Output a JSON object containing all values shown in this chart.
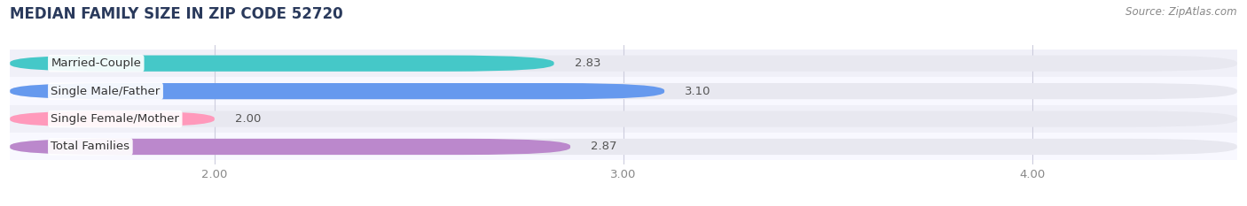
{
  "title": "MEDIAN FAMILY SIZE IN ZIP CODE 52720",
  "source": "Source: ZipAtlas.com",
  "categories": [
    "Married-Couple",
    "Single Male/Father",
    "Single Female/Mother",
    "Total Families"
  ],
  "values": [
    2.83,
    3.1,
    2.0,
    2.87
  ],
  "bar_colors": [
    "#45c8c8",
    "#6699ee",
    "#ff99bb",
    "#bb88cc"
  ],
  "bar_bg_color": "#e8e8f0",
  "row_bg_colors": [
    "#f0f0f8",
    "#f8f8ff"
  ],
  "xlim": [
    1.5,
    4.5
  ],
  "xticks": [
    2.0,
    3.0,
    4.0
  ],
  "xtick_labels": [
    "2.00",
    "3.00",
    "4.00"
  ],
  "label_fontsize": 9.5,
  "value_fontsize": 9.5,
  "title_fontsize": 12,
  "source_fontsize": 8.5,
  "bar_height": 0.58,
  "bg_color": "#ffffff",
  "title_color": "#2a3a5c",
  "source_color": "#888888",
  "tick_color": "#888888",
  "value_color": "#555555",
  "label_color": "#333333"
}
